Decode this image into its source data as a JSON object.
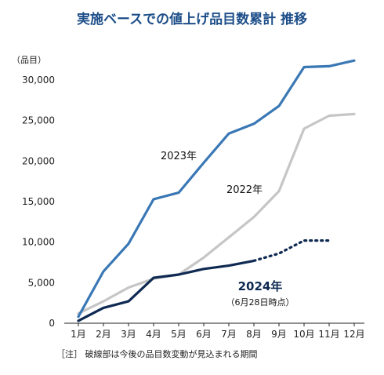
{
  "chart_data": {
    "type": "line",
    "title": "実施ベースでの値上げ品目数累計 推移",
    "unit_label": "（品目）",
    "categories": [
      "1月",
      "2月",
      "3月",
      "4月",
      "5月",
      "6月",
      "7月",
      "8月",
      "9月",
      "10月",
      "11月",
      "12月"
    ],
    "ylim": [
      0,
      30000
    ],
    "yticks": [
      "0",
      "5,000",
      "10,000",
      "15,000",
      "20,000",
      "25,000",
      "30,000"
    ],
    "ytick_values": [
      0,
      5000,
      10000,
      15000,
      20000,
      25000,
      30000
    ],
    "grid": false,
    "series": [
      {
        "name": "2023年",
        "color": "#3a78b5",
        "values": [
          800,
          6400,
          9800,
          15300,
          16100,
          19800,
          23400,
          24600,
          26800,
          31600,
          31700,
          32400
        ]
      },
      {
        "name": "2022年",
        "color": "#c6c6c6",
        "values": [
          1200,
          2700,
          4400,
          5500,
          6000,
          8100,
          10600,
          13100,
          16300,
          24000,
          25600,
          25800
        ]
      },
      {
        "name": "2024年",
        "sublabel": "（6月28日時点）",
        "color": "#0f2a52",
        "values": [
          300,
          1900,
          2700,
          5600,
          6000,
          6700,
          7100,
          7700,
          null,
          null,
          null,
          null
        ],
        "projected": [
          null,
          null,
          null,
          null,
          null,
          null,
          null,
          7700,
          8600,
          10200,
          10200,
          null
        ]
      }
    ],
    "footnote": "［注］ 破線部は今後の品目数変動が見込まれる期間"
  }
}
